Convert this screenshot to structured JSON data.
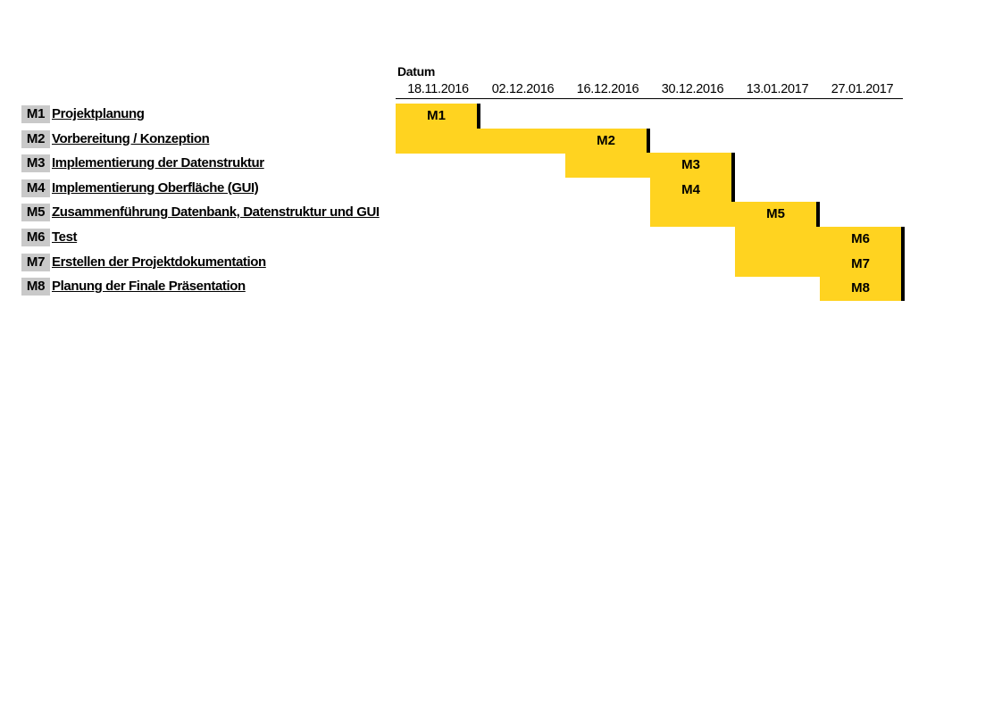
{
  "chart_data": {
    "type": "gantt",
    "header": "Datum",
    "dates": [
      "18.11.2016",
      "02.12.2016",
      "16.12.2016",
      "30.12.2016",
      "13.01.2017",
      "27.01.2017"
    ],
    "bar_color": "#ffd320",
    "id_color": "#c9c9c9",
    "tasks": [
      {
        "id": "M1",
        "name": "Projektplanung",
        "start": 0,
        "end": 0
      },
      {
        "id": "M2",
        "name": "Vorbereitung / Konzeption",
        "start": 0,
        "end": 2
      },
      {
        "id": "M3",
        "name": "Implementierung der Datenstruktur",
        "start": 2,
        "end": 3
      },
      {
        "id": "M4",
        "name": "Implementierung Oberfläche (GUI)",
        "start": 3,
        "end": 3
      },
      {
        "id": "M5",
        "name": "Zusammenführung Datenbank, Datenstruktur und GUI",
        "start": 3,
        "end": 4
      },
      {
        "id": "M6",
        "name": "Test",
        "start": 4,
        "end": 5
      },
      {
        "id": "M7",
        "name": "Erstellen der Projektdokumentation",
        "start": 4,
        "end": 5
      },
      {
        "id": "M8",
        "name": "Planung der Finale Präsentation",
        "start": 5,
        "end": 5
      }
    ]
  }
}
